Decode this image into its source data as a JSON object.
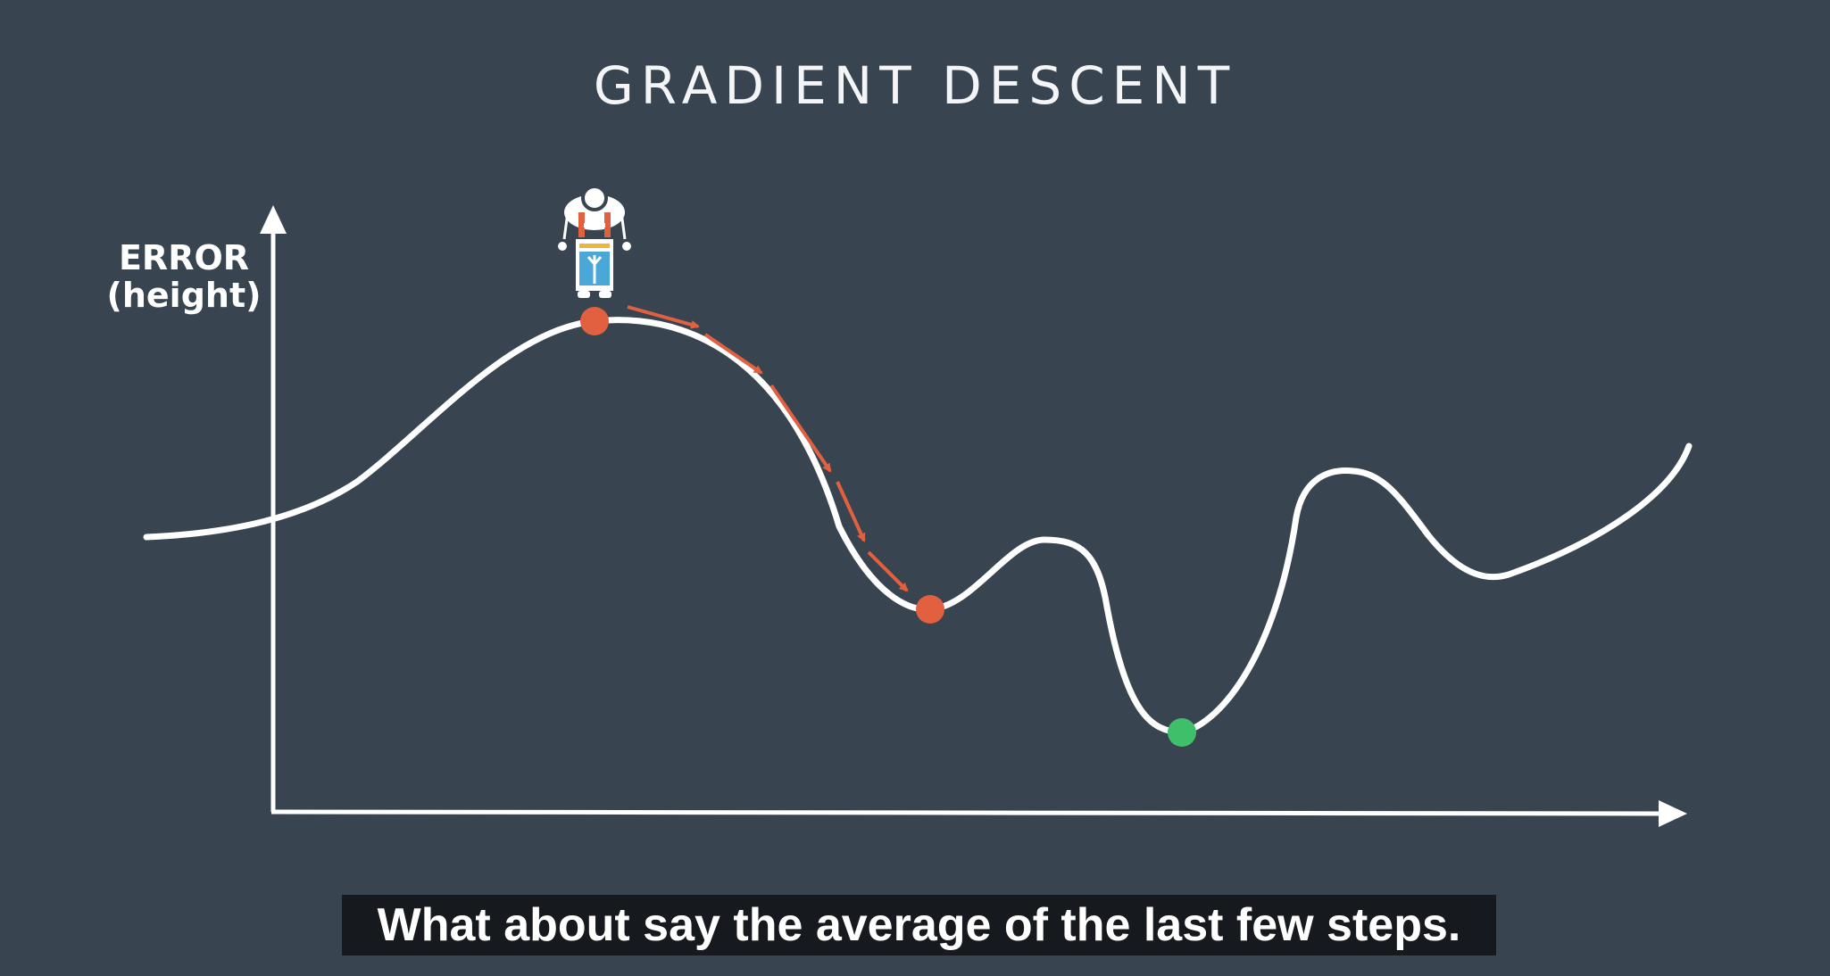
{
  "title": "GRADIENT DESCENT",
  "y_axis_label": {
    "line1": "ERROR",
    "line2": "(height)"
  },
  "caption": "What about say the average of the last few steps.",
  "colors": {
    "background": "#384450",
    "curve": "#ffffff",
    "marker_start": "#e0603f",
    "marker_local_min": "#e0603f",
    "marker_global_min": "#3fbf6a",
    "step_arrows": "#e0603f"
  },
  "icons": {
    "robot": "robot-icon"
  }
}
